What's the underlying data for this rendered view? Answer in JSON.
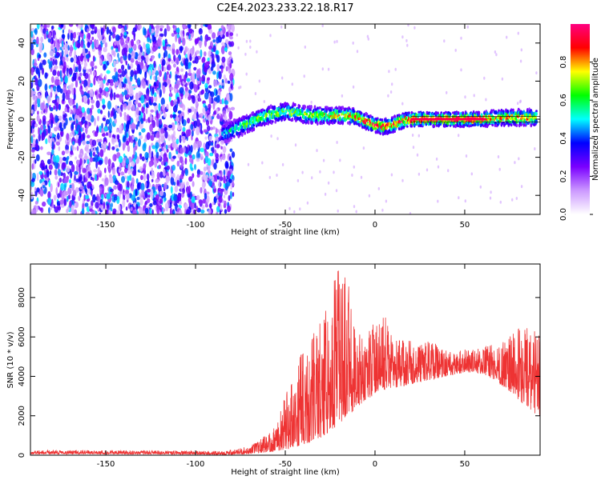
{
  "title": "C2E4.2023.233.22.18.R17",
  "chart_data": [
    {
      "type": "heatmap",
      "xlabel": "Height of straight line (km)",
      "ylabel": "Frequency (Hz)",
      "xlim": [
        -192,
        92
      ],
      "ylim": [
        -50,
        50
      ],
      "xticks": [
        "-150",
        "-100",
        "-50",
        "0",
        "50"
      ],
      "yticks": [
        "-40",
        "-20",
        "0",
        "20",
        "40"
      ],
      "colorbar": {
        "label": "Normalized spectral amplitude",
        "range": [
          0.0,
          1.0
        ],
        "ticks": [
          "0.0",
          "0.2",
          "0.4",
          "0.6",
          "0.8"
        ],
        "colors": [
          "#ffffff",
          "#cc99ff",
          "#7a00ff",
          "#0000ff",
          "#00ffff",
          "#00ff00",
          "#ffff00",
          "#ff0000",
          "#ff0080"
        ]
      },
      "noise_region": {
        "x_from": -192,
        "x_to": -85,
        "level": 0.3
      },
      "ridge": {
        "x": [
          -85,
          -80,
          -75,
          -70,
          -65,
          -60,
          -55,
          -50,
          -45,
          -40,
          -35,
          -30,
          -25,
          -20,
          -15,
          -10,
          -5,
          0,
          5,
          10,
          15,
          20,
          25,
          30,
          40,
          50,
          60,
          65,
          70,
          75,
          80,
          85,
          90
        ],
        "freq": [
          -8,
          -6,
          -4,
          -2,
          0,
          2,
          3,
          4,
          3.5,
          2.5,
          2,
          2,
          2,
          2,
          2,
          1,
          -1,
          -3,
          -4,
          -3,
          -1,
          0,
          0,
          0,
          0,
          0,
          0,
          0.5,
          0.8,
          0.8,
          0.8,
          0.8,
          0.8
        ],
        "amplitude": [
          0.4,
          0.45,
          0.5,
          0.55,
          0.6,
          0.6,
          0.6,
          0.6,
          0.62,
          0.62,
          0.65,
          0.7,
          0.7,
          0.72,
          0.75,
          0.8,
          0.85,
          0.88,
          0.88,
          0.85,
          0.85,
          0.9,
          0.92,
          0.95,
          0.95,
          0.95,
          0.95,
          0.7,
          0.75,
          0.78,
          0.8,
          0.75,
          0.6
        ]
      }
    },
    {
      "type": "line",
      "xlabel": "Height of straight line (km)",
      "ylabel": "SNR (10 * v/v)",
      "xlim": [
        -192,
        92
      ],
      "ylim": [
        0,
        9700
      ],
      "xticks": [
        "-150",
        "-100",
        "-50",
        "0",
        "50"
      ],
      "yticks": [
        "0",
        "2000",
        "4000",
        "6000",
        "8000"
      ],
      "color": "#ee3333",
      "envelope": {
        "x": [
          -192,
          -150,
          -100,
          -85,
          -80,
          -75,
          -70,
          -65,
          -60,
          -55,
          -50,
          -45,
          -40,
          -35,
          -30,
          -25,
          -20,
          -15,
          -10,
          -5,
          0,
          5,
          10,
          15,
          20,
          25,
          30,
          35,
          40,
          45,
          50,
          55,
          60,
          65,
          70,
          75,
          80,
          85,
          90
        ],
        "low": [
          60,
          60,
          40,
          20,
          30,
          50,
          80,
          120,
          150,
          200,
          300,
          400,
          500,
          700,
          900,
          1200,
          1600,
          2000,
          2400,
          2800,
          3100,
          3300,
          3400,
          3500,
          3600,
          3700,
          3800,
          3900,
          4000,
          4100,
          4200,
          4200,
          4100,
          3900,
          3600,
          3200,
          2800,
          2400,
          2000
        ],
        "high": [
          250,
          250,
          220,
          200,
          280,
          350,
          500,
          700,
          1100,
          1600,
          3000,
          4200,
          5400,
          6000,
          7000,
          8600,
          9600,
          9000,
          6400,
          6000,
          6800,
          7200,
          6000,
          5800,
          5800,
          5600,
          5800,
          5600,
          5400,
          5200,
          5400,
          5400,
          5500,
          5600,
          5700,
          6000,
          6400,
          6600,
          6200
        ]
      }
    }
  ]
}
